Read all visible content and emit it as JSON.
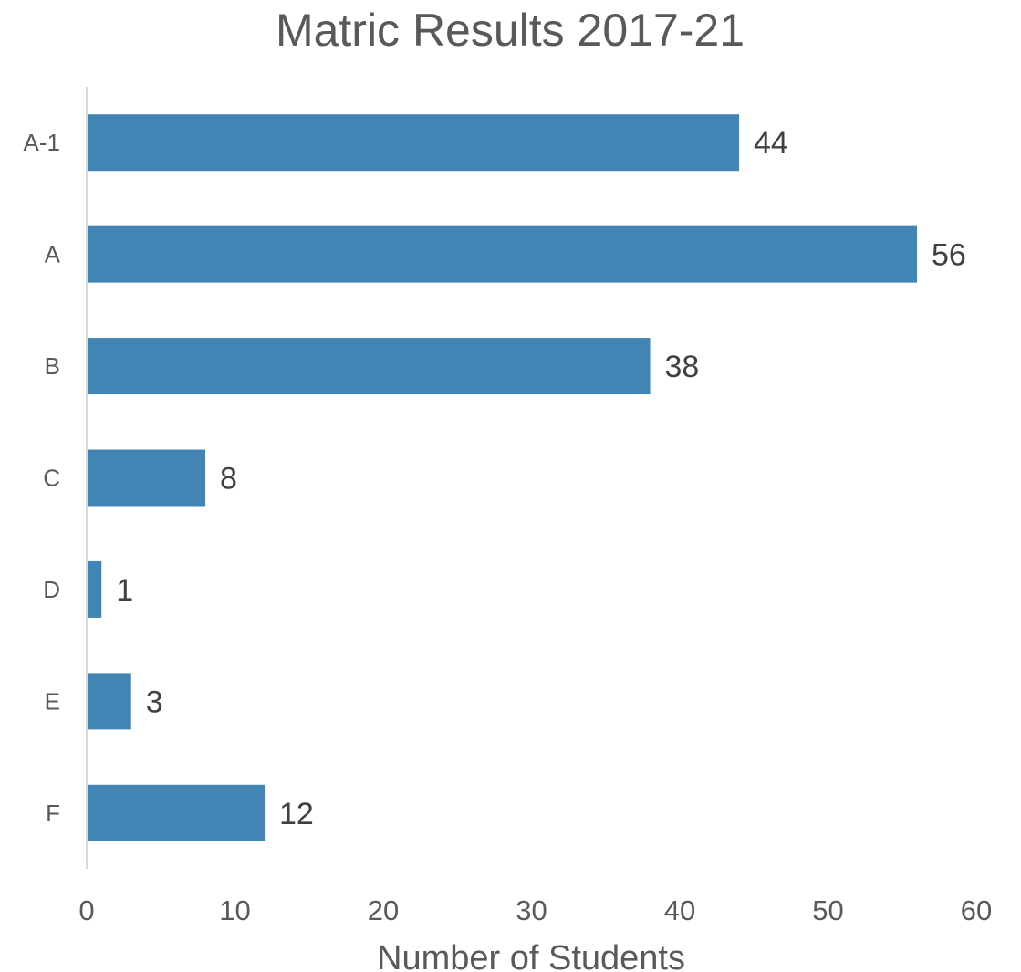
{
  "chart_data": {
    "type": "bar",
    "orientation": "horizontal",
    "title": "Matric Results 2017-21",
    "xlabel": "Number of Students",
    "ylabel": "",
    "categories": [
      "A-1",
      "A",
      "B",
      "C",
      "D",
      "E",
      "F"
    ],
    "values": [
      44,
      56,
      38,
      8,
      1,
      3,
      12
    ],
    "data_labels": [
      "44",
      "56",
      "38",
      "8",
      "1",
      "3",
      "12"
    ],
    "xlim": [
      0,
      60
    ],
    "x_ticks": [
      "0",
      "10",
      "20",
      "30",
      "40",
      "50",
      "60"
    ],
    "grid": false,
    "legend": "none",
    "bar_color": "#4285b4",
    "axis_color": "#d9d9d9"
  }
}
